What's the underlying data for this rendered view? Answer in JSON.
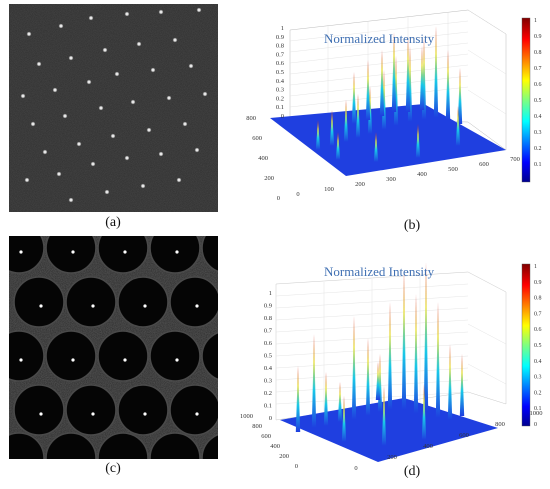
{
  "captions": {
    "a": "(a)",
    "b": "(b)",
    "c": "(c)",
    "d": "(d)"
  },
  "colors": {
    "surface_base": "#1e3ee0",
    "peak_top": "#d62020",
    "colorbar_top": "#800000",
    "colorbar_bottom": "#00008f"
  },
  "plot_b": {
    "title": "Normalized Intensity",
    "z_ticks": [
      "0",
      "0.1",
      "0.2",
      "0.3",
      "0.4",
      "0.5",
      "0.6",
      "0.7",
      "0.8",
      "0.9",
      "1"
    ],
    "y_ticks": [
      "0",
      "200",
      "400",
      "600",
      "800"
    ],
    "x_ticks": [
      "0",
      "100",
      "200",
      "300",
      "400",
      "500",
      "600",
      "700"
    ],
    "colorbar_ticks": [
      "1",
      "0.9",
      "0.8",
      "0.7",
      "0.6",
      "0.5",
      "0.4",
      "0.3",
      "0.2",
      "0.1"
    ]
  },
  "plot_d": {
    "title": "Normalized Intensity",
    "z_ticks": [
      "0",
      "0.1",
      "0.2",
      "0.3",
      "0.4",
      "0.5",
      "0.6",
      "0.7",
      "0.8",
      "0.9",
      "1"
    ],
    "y_ticks": [
      "0",
      "200",
      "400",
      "600",
      "800",
      "1000"
    ],
    "x_ticks": [
      "0",
      "200",
      "400",
      "600",
      "800",
      "1000"
    ],
    "colorbar_ticks": [
      "1",
      "0.9",
      "0.8",
      "0.7",
      "0.6",
      "0.5",
      "0.4",
      "0.3",
      "0.2",
      "0.1",
      "0"
    ]
  }
}
